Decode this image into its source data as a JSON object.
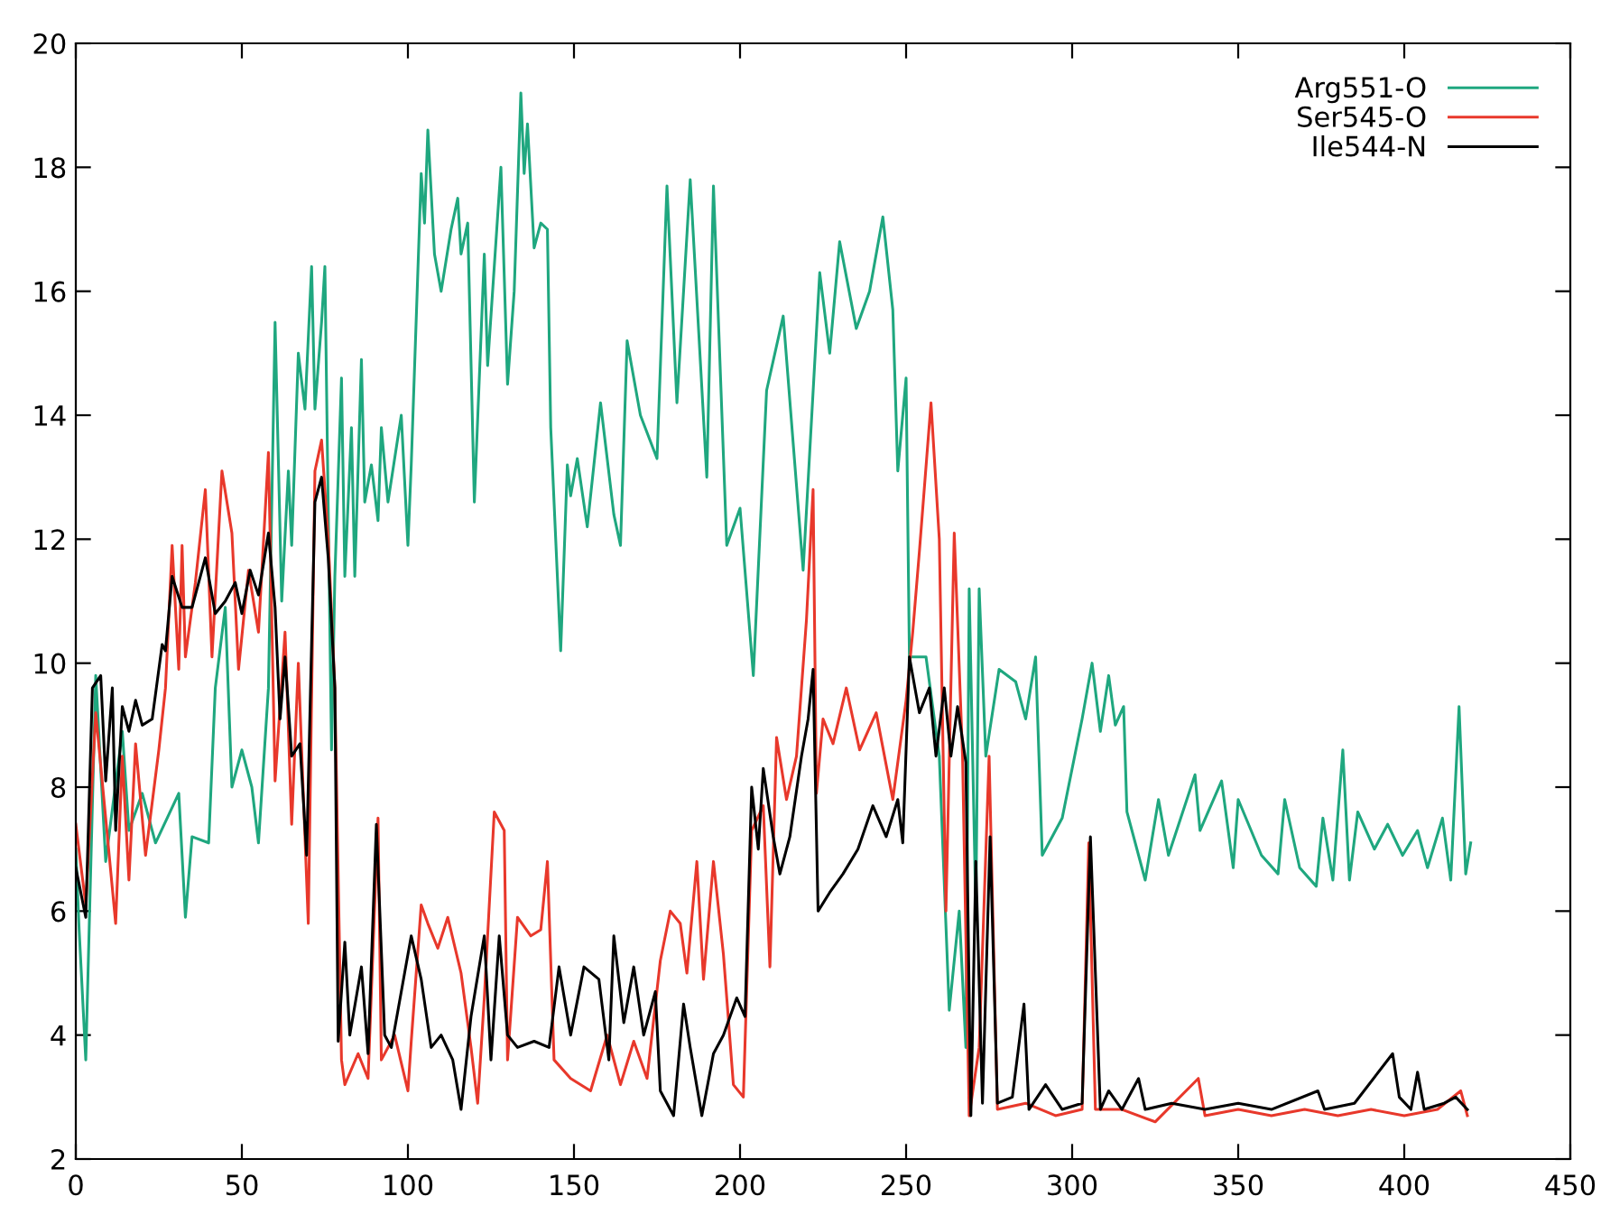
{
  "chart_data": {
    "type": "line",
    "xlim": [
      0,
      450
    ],
    "ylim": [
      2,
      20
    ],
    "xticks": [
      0,
      50,
      100,
      150,
      200,
      250,
      300,
      350,
      400,
      450
    ],
    "yticks": [
      2,
      4,
      6,
      8,
      10,
      12,
      14,
      16,
      18,
      20
    ],
    "legend": "top right",
    "marker": "none",
    "line_style": "solid",
    "series": [
      {
        "name": "Arg551-O",
        "color": "#1fa77f",
        "x": [
          0,
          1,
          3,
          6,
          9,
          14,
          16,
          20,
          24,
          31,
          33,
          35,
          40,
          42,
          45,
          47,
          50,
          53,
          55,
          58,
          60,
          62,
          64,
          65,
          67,
          69,
          71,
          72,
          74,
          75,
          77,
          78,
          80,
          81,
          83,
          84,
          86,
          87,
          89,
          91,
          92,
          94,
          98,
          100,
          101,
          104,
          105,
          106,
          108,
          110,
          113,
          115,
          116,
          118,
          120,
          123,
          124,
          128,
          130,
          132,
          134,
          135,
          136,
          138,
          140,
          142,
          143,
          146,
          148,
          149,
          151,
          154,
          158,
          162,
          164,
          166,
          170,
          175,
          178,
          181,
          185,
          190,
          192,
          196,
          200,
          204,
          208,
          213,
          219,
          224,
          227,
          230,
          235,
          239,
          243,
          246,
          247.5,
          250,
          251,
          256,
          260,
          263,
          266,
          268,
          269,
          271,
          272,
          274,
          278,
          283,
          286,
          289,
          291,
          297,
          303,
          306,
          308.5,
          311,
          313,
          315.5,
          316.5,
          322,
          326,
          329,
          337,
          338.5,
          345,
          348.5,
          350,
          357,
          362,
          364,
          368.5,
          373.5,
          375.5,
          378.5,
          381.5,
          383.5,
          386,
          391,
          395,
          399.5,
          404,
          407,
          411.5,
          414,
          416.5,
          418.5,
          420
        ],
        "values": [
          7.0,
          5.7,
          3.6,
          9.8,
          6.8,
          8.9,
          7.3,
          7.9,
          7.1,
          7.9,
          5.9,
          7.2,
          7.1,
          9.6,
          10.9,
          8.0,
          8.6,
          8.0,
          7.1,
          9.6,
          15.5,
          11.0,
          13.1,
          11.9,
          15.0,
          14.1,
          16.4,
          14.1,
          15.5,
          16.4,
          8.6,
          11.4,
          14.6,
          11.4,
          13.8,
          11.4,
          14.9,
          12.6,
          13.2,
          12.3,
          13.8,
          12.6,
          14.0,
          11.9,
          13.2,
          17.9,
          17.1,
          18.6,
          16.6,
          16.0,
          17.0,
          17.5,
          16.6,
          17.1,
          12.6,
          16.6,
          14.8,
          18.0,
          14.5,
          16.0,
          19.2,
          17.9,
          18.7,
          16.7,
          17.1,
          17.0,
          13.8,
          10.2,
          13.2,
          12.7,
          13.3,
          12.2,
          14.2,
          12.4,
          11.9,
          15.2,
          14.0,
          13.3,
          17.7,
          14.2,
          17.8,
          13.0,
          17.7,
          11.9,
          12.5,
          9.8,
          14.4,
          15.6,
          11.5,
          16.3,
          15.0,
          16.8,
          15.4,
          16.0,
          17.2,
          15.7,
          13.1,
          14.6,
          10.1,
          10.1,
          8.5,
          4.4,
          6.0,
          3.8,
          11.2,
          6.0,
          11.2,
          8.5,
          9.9,
          9.7,
          9.1,
          10.1,
          6.9,
          7.5,
          9.1,
          10.0,
          8.9,
          9.8,
          9.0,
          9.3,
          7.6,
          6.5,
          7.8,
          6.9,
          8.2,
          7.3,
          8.1,
          6.7,
          7.8,
          6.9,
          6.6,
          7.8,
          6.7,
          6.4,
          7.5,
          6.5,
          8.6,
          6.5,
          7.6,
          7.0,
          7.4,
          6.9,
          7.3,
          6.7,
          7.5,
          6.5,
          9.3,
          6.6,
          7.1
        ]
      },
      {
        "name": "Ser545-O",
        "color": "#e8382b",
        "x": [
          0,
          3,
          6,
          9,
          12,
          14,
          16,
          18,
          21,
          25,
          27,
          29,
          31,
          32,
          33,
          36,
          39,
          41,
          44,
          47,
          49,
          52,
          55,
          58,
          60,
          63,
          65,
          67,
          70,
          72,
          74,
          76,
          78,
          80,
          81,
          85,
          88,
          91,
          92,
          96,
          100,
          101,
          104,
          106,
          109,
          112,
          116,
          119,
          121,
          123,
          126,
          129,
          130,
          133,
          137,
          140,
          142,
          144,
          149,
          155,
          160,
          164,
          168,
          172,
          176,
          179,
          182,
          184,
          187,
          189,
          192,
          195,
          198,
          201,
          203.5,
          207,
          209,
          211,
          214,
          217,
          220,
          222,
          223,
          225,
          228,
          232,
          236,
          241,
          246,
          250,
          252,
          254,
          257.5,
          260,
          262,
          264.5,
          267,
          269,
          272,
          275,
          277.5,
          286,
          295,
          303,
          305,
          307,
          315,
          325,
          338,
          340,
          350,
          360,
          370,
          380,
          390,
          400,
          410,
          417,
          419
        ],
        "values": [
          7.4,
          6.1,
          9.2,
          7.5,
          5.8,
          8.5,
          6.5,
          8.7,
          6.9,
          8.6,
          9.6,
          11.9,
          9.9,
          11.9,
          10.1,
          11.3,
          12.8,
          10.1,
          13.1,
          12.1,
          9.9,
          11.5,
          10.5,
          13.4,
          8.1,
          10.5,
          7.4,
          10.0,
          5.8,
          13.1,
          13.6,
          12.0,
          9.6,
          3.6,
          3.2,
          3.7,
          3.3,
          7.5,
          3.6,
          4.0,
          3.1,
          3.9,
          6.1,
          5.8,
          5.4,
          5.9,
          5.0,
          3.8,
          2.9,
          4.6,
          7.6,
          7.3,
          3.6,
          5.9,
          5.6,
          5.7,
          6.8,
          3.6,
          3.3,
          3.1,
          4.0,
          3.2,
          3.9,
          3.3,
          5.2,
          6.0,
          5.8,
          5.0,
          6.8,
          4.9,
          6.8,
          5.3,
          3.2,
          3.0,
          7.3,
          7.7,
          5.1,
          8.8,
          7.8,
          8.5,
          10.7,
          12.8,
          7.9,
          9.1,
          8.7,
          9.6,
          8.6,
          9.2,
          7.8,
          9.4,
          10.5,
          11.8,
          14.2,
          12.0,
          6.0,
          12.1,
          8.5,
          2.7,
          3.8,
          8.5,
          2.8,
          2.9,
          2.7,
          2.8,
          7.1,
          2.8,
          2.8,
          2.6,
          3.3,
          2.7,
          2.8,
          2.7,
          2.8,
          2.7,
          2.8,
          2.7,
          2.8,
          3.1,
          2.7
        ]
      },
      {
        "name": "Ile544-N",
        "color": "#000000",
        "x": [
          0,
          3,
          5,
          7.5,
          9,
          11,
          12,
          14,
          16,
          18,
          20,
          23,
          26,
          27,
          29,
          32,
          35,
          39,
          42,
          45,
          48,
          50,
          52.5,
          55,
          58,
          60,
          61.5,
          63,
          65,
          67.5,
          69.5,
          72,
          74,
          76,
          78,
          79,
          81,
          82.5,
          86,
          88,
          90.5,
          93,
          95,
          99,
          101,
          104,
          107,
          110,
          113.5,
          116,
          119,
          123,
          125,
          127.5,
          130,
          133,
          138,
          142.5,
          145.5,
          149,
          153,
          157.5,
          160.5,
          162,
          165,
          168,
          171,
          174.5,
          176,
          180,
          183,
          185,
          188.5,
          192,
          195,
          199,
          201.5,
          203.5,
          205.5,
          207,
          210,
          212,
          215,
          218.5,
          220.5,
          222,
          223.5,
          227,
          231,
          235.5,
          240,
          244,
          247.5,
          249,
          251,
          254,
          257,
          259,
          261.5,
          263.5,
          265.5,
          268,
          269.5,
          271,
          273,
          275.3,
          277.5,
          282,
          285.5,
          287,
          292,
          297,
          303,
          305.5,
          308.5,
          311,
          315,
          320,
          322,
          330,
          340,
          350,
          360,
          374,
          376,
          385,
          396.5,
          398.5,
          402,
          404,
          406,
          412,
          415.5,
          419
        ],
        "values": [
          6.7,
          5.9,
          9.6,
          9.8,
          8.1,
          9.6,
          7.3,
          9.3,
          8.9,
          9.4,
          9.0,
          9.1,
          10.3,
          10.2,
          11.4,
          10.9,
          10.9,
          11.7,
          10.8,
          11.0,
          11.3,
          10.8,
          11.5,
          11.1,
          12.1,
          10.9,
          9.1,
          10.1,
          8.5,
          8.7,
          6.9,
          12.6,
          13.0,
          11.7,
          9.6,
          3.9,
          5.5,
          4.0,
          5.1,
          3.7,
          7.4,
          4.0,
          3.8,
          5.0,
          5.6,
          4.9,
          3.8,
          4.0,
          3.6,
          2.8,
          4.3,
          5.6,
          3.6,
          5.6,
          4.0,
          3.8,
          3.9,
          3.8,
          5.1,
          4.0,
          5.1,
          4.9,
          3.6,
          5.6,
          4.2,
          5.1,
          4.0,
          4.7,
          3.1,
          2.7,
          4.5,
          3.8,
          2.7,
          3.7,
          4.0,
          4.6,
          4.3,
          8.0,
          7.0,
          8.3,
          7.2,
          6.6,
          7.2,
          8.5,
          9.1,
          9.9,
          6.0,
          6.3,
          6.6,
          7.0,
          7.7,
          7.2,
          7.8,
          7.1,
          10.1,
          9.2,
          9.6,
          8.5,
          9.6,
          8.5,
          9.3,
          8.4,
          2.7,
          6.8,
          2.9,
          7.2,
          2.9,
          3.0,
          4.5,
          2.8,
          3.2,
          2.8,
          2.9,
          7.2,
          2.8,
          3.1,
          2.8,
          3.3,
          2.8,
          2.9,
          2.8,
          2.9,
          2.8,
          3.1,
          2.8,
          2.9,
          3.7,
          3.0,
          2.8,
          3.4,
          2.8,
          2.9,
          3.0,
          2.8
        ]
      }
    ]
  }
}
